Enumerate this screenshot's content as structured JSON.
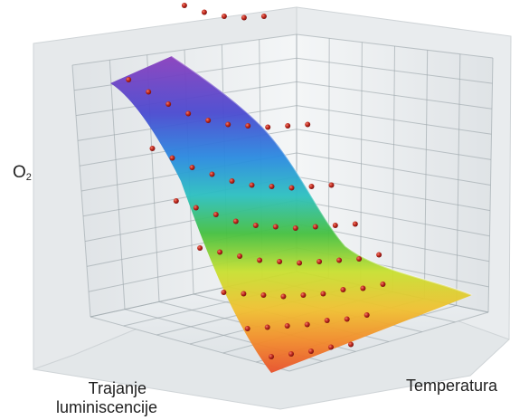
{
  "chart_data": {
    "type": "surface-3d",
    "title": "",
    "axes": {
      "vertical": {
        "label_main": "O",
        "label_sub": "2"
      },
      "x": {
        "label": "Trajanje luminiscencije",
        "label_line1": "Trajanje",
        "label_line2": "luminiscencije"
      },
      "y": {
        "label": "Temperatura"
      }
    },
    "grid": true,
    "colormap": [
      "#8a3fbd",
      "#3050d8",
      "#2cb8d0",
      "#45c040",
      "#e8e028",
      "#f29a2a",
      "#e8502a"
    ],
    "marker_color": "#c0281c",
    "decay_rows": [
      {
        "temperature_index": 0,
        "values": [
          1.0,
          0.93,
          0.86,
          0.79,
          0.74,
          0.7,
          0.67,
          0.65,
          0.64
        ]
      },
      {
        "temperature_index": 1,
        "values": [
          0.6,
          0.54,
          0.48,
          0.43,
          0.39,
          0.36,
          0.34,
          0.32,
          0.31,
          0.3
        ]
      },
      {
        "temperature_index": 2,
        "values": [
          0.42,
          0.37,
          0.32,
          0.28,
          0.24,
          0.21,
          0.19,
          0.17,
          0.16,
          0.15
        ]
      },
      {
        "temperature_index": 3,
        "values": [
          0.3,
          0.26,
          0.22,
          0.18,
          0.15,
          0.13,
          0.11,
          0.1,
          0.09,
          0.08
        ]
      },
      {
        "temperature_index": 4,
        "values": [
          0.2,
          0.17,
          0.14,
          0.11,
          0.09,
          0.07,
          0.06,
          0.05,
          0.04,
          0.04
        ]
      },
      {
        "temperature_index": 5,
        "values": [
          0.11,
          0.09,
          0.07,
          0.05,
          0.04,
          0.03,
          0.03,
          0.02,
          0.02
        ]
      },
      {
        "temperature_index": 6,
        "values": [
          0.05,
          0.04,
          0.03,
          0.02,
          0.02,
          0.01,
          0.01
        ]
      },
      {
        "temperature_index": 7,
        "values": [
          0.02,
          0.015,
          0.01,
          0.01,
          0.005
        ]
      }
    ]
  }
}
